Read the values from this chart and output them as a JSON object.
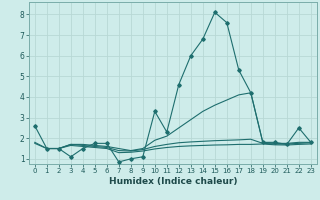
{
  "xlabel": "Humidex (Indice chaleur)",
  "bg_color": "#ceecea",
  "grid_color": "#b8d8d5",
  "line_color": "#1e6e6e",
  "xlim": [
    -0.5,
    23.5
  ],
  "ylim": [
    0.75,
    8.6
  ],
  "xticks": [
    0,
    1,
    2,
    3,
    4,
    5,
    6,
    7,
    8,
    9,
    10,
    11,
    12,
    13,
    14,
    15,
    16,
    17,
    18,
    19,
    20,
    21,
    22,
    23
  ],
  "yticks": [
    1,
    2,
    3,
    4,
    5,
    6,
    7,
    8
  ],
  "series": [
    {
      "x": [
        0,
        1,
        2,
        3,
        4,
        5,
        6,
        7,
        8,
        9,
        10,
        11,
        12,
        13,
        14,
        15,
        16,
        17,
        18,
        19,
        20,
        21,
        22,
        23
      ],
      "y": [
        2.6,
        1.5,
        1.5,
        1.1,
        1.5,
        1.75,
        1.75,
        0.85,
        1.0,
        1.1,
        3.3,
        2.3,
        4.6,
        6.0,
        6.8,
        8.1,
        7.6,
        5.3,
        4.2,
        1.8,
        1.8,
        1.7,
        2.5,
        1.8
      ],
      "has_markers": true
    },
    {
      "x": [
        0,
        1,
        2,
        3,
        4,
        5,
        6,
        7,
        8,
        9,
        10,
        11,
        12,
        13,
        14,
        15,
        16,
        17,
        18,
        19,
        20,
        21,
        22,
        23
      ],
      "y": [
        1.8,
        1.5,
        1.5,
        1.7,
        1.7,
        1.65,
        1.6,
        1.5,
        1.4,
        1.5,
        1.9,
        2.1,
        2.5,
        2.9,
        3.3,
        3.6,
        3.85,
        4.1,
        4.2,
        1.8,
        1.75,
        1.75,
        1.8,
        1.8
      ],
      "has_markers": false
    },
    {
      "x": [
        0,
        1,
        2,
        3,
        4,
        5,
        6,
        7,
        8,
        9,
        10,
        11,
        12,
        13,
        14,
        15,
        16,
        17,
        18,
        19,
        20,
        21,
        22,
        23
      ],
      "y": [
        1.75,
        1.5,
        1.5,
        1.7,
        1.65,
        1.6,
        1.55,
        1.4,
        1.38,
        1.45,
        1.6,
        1.7,
        1.78,
        1.82,
        1.85,
        1.88,
        1.9,
        1.92,
        1.95,
        1.75,
        1.72,
        1.72,
        1.75,
        1.78
      ],
      "has_markers": false
    },
    {
      "x": [
        1,
        2,
        3,
        4,
        5,
        6,
        7,
        8,
        9,
        10,
        11,
        12,
        13,
        14,
        15,
        16,
        17,
        18,
        19,
        20,
        21,
        22,
        23
      ],
      "y": [
        1.5,
        1.5,
        1.65,
        1.6,
        1.55,
        1.5,
        1.3,
        1.32,
        1.38,
        1.48,
        1.55,
        1.6,
        1.63,
        1.65,
        1.67,
        1.68,
        1.7,
        1.7,
        1.72,
        1.68,
        1.67,
        1.7,
        1.72
      ],
      "has_markers": false
    }
  ]
}
